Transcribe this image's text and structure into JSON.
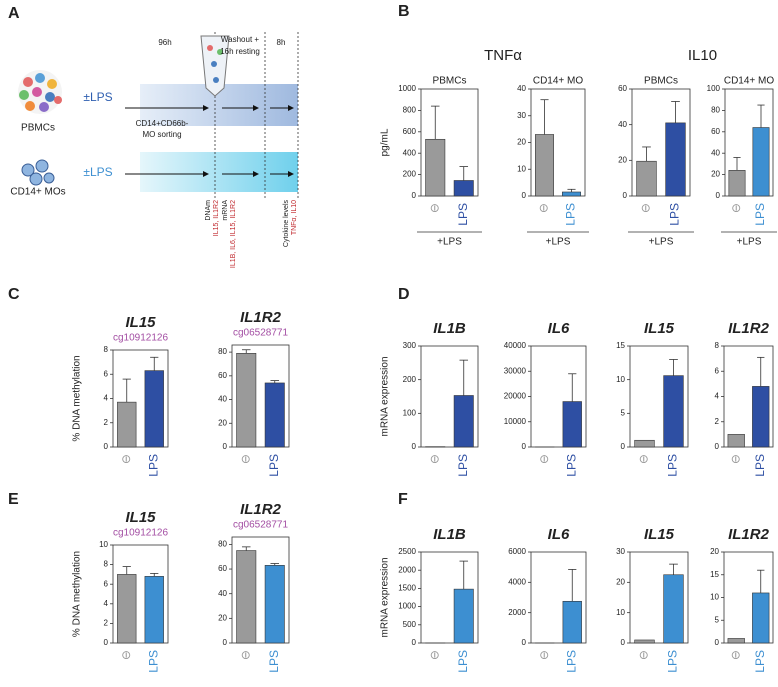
{
  "panel_labels": [
    "A",
    "B",
    "C",
    "D",
    "E",
    "F"
  ],
  "diagram": {
    "time_labels": [
      "96h",
      "Washout +",
      "16h resting",
      "8h"
    ],
    "rows": [
      {
        "treatment": "±LPS",
        "cells": "PBMCs",
        "step": [
          "CD14+CD66b-",
          "MO sorting"
        ]
      },
      {
        "treatment": "±LPS",
        "cells": "CD14+ MOs"
      }
    ],
    "readouts": [
      {
        "assay": "DNAm",
        "targets": "IL15, IL1R2"
      },
      {
        "assay": "mRNA",
        "targets": "IL1B, IL6, IL15, IL1R2"
      },
      {
        "assay": "Cytokine levels",
        "targets": "TNFα, IL10"
      }
    ]
  },
  "group_titles": [
    "TNFα",
    "IL10"
  ],
  "chart_data": [
    {
      "type": "bar",
      "title": "PBMCs",
      "ylabel": "pg/mL",
      "annotation": "+LPS",
      "categories": [
        "⊖",
        "LPS"
      ],
      "values": [
        530,
        145
      ],
      "errors": [
        310,
        130
      ],
      "colors": [
        "#9a9a9a",
        "#2e4fa3"
      ],
      "ylim": [
        0,
        1000
      ],
      "yticks": [
        0,
        200,
        400,
        600,
        800,
        1000
      ]
    },
    {
      "type": "bar",
      "title": "CD14+ MO",
      "annotation": "+LPS",
      "categories": [
        "⊖",
        "LPS"
      ],
      "values": [
        23,
        1.5
      ],
      "errors": [
        13,
        1
      ],
      "colors": [
        "#9a9a9a",
        "#3d8fd1"
      ],
      "ylim": [
        0,
        40
      ],
      "yticks": [
        0,
        10,
        20,
        30,
        40
      ]
    },
    {
      "type": "bar",
      "title": "PBMCs",
      "annotation": "+LPS",
      "categories": [
        "⊖",
        "LPS"
      ],
      "values": [
        19.5,
        41
      ],
      "errors": [
        8,
        12
      ],
      "colors": [
        "#9a9a9a",
        "#2e4fa3"
      ],
      "ylim": [
        0,
        60
      ],
      "yticks": [
        0,
        20,
        40,
        60
      ]
    },
    {
      "type": "bar",
      "title": "CD14+ MO",
      "annotation": "+LPS",
      "categories": [
        "⊖",
        "LPS"
      ],
      "values": [
        24,
        64
      ],
      "errors": [
        12,
        21
      ],
      "colors": [
        "#9a9a9a",
        "#3d8fd1"
      ],
      "ylim": [
        0,
        100
      ],
      "yticks": [
        0,
        20,
        40,
        60,
        80,
        100
      ]
    },
    {
      "type": "bar",
      "title": "IL15",
      "title_italic": true,
      "subtitle": "cg10912126",
      "ylabel": "% DNA methylation",
      "categories": [
        "⊖",
        "LPS"
      ],
      "values": [
        3.7,
        6.3
      ],
      "errors": [
        1.9,
        1.1
      ],
      "colors": [
        "#9a9a9a",
        "#2e4fa3"
      ],
      "ylim": [
        0,
        8
      ],
      "yticks": [
        0,
        2,
        4,
        6,
        8
      ]
    },
    {
      "type": "bar",
      "title": "IL1R2",
      "title_italic": true,
      "subtitle": "cg06528771",
      "categories": [
        "⊖",
        "LPS"
      ],
      "values": [
        79,
        54
      ],
      "errors": [
        3,
        2
      ],
      "colors": [
        "#9a9a9a",
        "#2e4fa3"
      ],
      "ylim": [
        0,
        86
      ],
      "yticks": [
        0,
        20,
        40,
        60,
        80
      ]
    },
    {
      "type": "bar",
      "title": "IL1B",
      "title_italic": true,
      "ylabel": "mRNA expression",
      "categories": [
        "⊖",
        "LPS"
      ],
      "values": [
        1,
        153
      ],
      "errors": [
        null,
        105
      ],
      "colors": [
        "#9a9a9a",
        "#2e4fa3"
      ],
      "ylim": [
        0,
        300
      ],
      "yticks": [
        0,
        100,
        200,
        300
      ]
    },
    {
      "type": "bar",
      "title": "IL6",
      "title_italic": true,
      "categories": [
        "⊖",
        "LPS"
      ],
      "values": [
        1,
        18000
      ],
      "errors": [
        null,
        11000
      ],
      "colors": [
        "#9a9a9a",
        "#2e4fa3"
      ],
      "ylim": [
        0,
        40000
      ],
      "yticks": [
        0,
        10000,
        20000,
        30000,
        40000
      ]
    },
    {
      "type": "bar",
      "title": "IL15",
      "title_italic": true,
      "categories": [
        "⊖",
        "LPS"
      ],
      "values": [
        1,
        10.6
      ],
      "errors": [
        null,
        2.4
      ],
      "colors": [
        "#9a9a9a",
        "#2e4fa3"
      ],
      "ylim": [
        0,
        15
      ],
      "yticks": [
        0,
        5,
        10,
        15
      ]
    },
    {
      "type": "bar",
      "title": "IL1R2",
      "title_italic": true,
      "categories": [
        "⊖",
        "LPS"
      ],
      "values": [
        1,
        4.8
      ],
      "errors": [
        null,
        2.3
      ],
      "colors": [
        "#9a9a9a",
        "#2e4fa3"
      ],
      "ylim": [
        0,
        8
      ],
      "yticks": [
        0,
        2,
        4,
        6,
        8
      ]
    },
    {
      "type": "bar",
      "title": "IL15",
      "title_italic": true,
      "subtitle": "cg10912126",
      "ylabel": "% DNA methylation",
      "categories": [
        "⊖",
        "LPS"
      ],
      "values": [
        7.0,
        6.8
      ],
      "errors": [
        0.8,
        0.3
      ],
      "colors": [
        "#9a9a9a",
        "#3d8fd1"
      ],
      "ylim": [
        0,
        10
      ],
      "yticks": [
        0,
        2,
        4,
        6,
        8,
        10
      ]
    },
    {
      "type": "bar",
      "title": "IL1R2",
      "title_italic": true,
      "subtitle": "cg06528771",
      "categories": [
        "⊖",
        "LPS"
      ],
      "values": [
        75,
        63
      ],
      "errors": [
        3,
        1.5
      ],
      "colors": [
        "#9a9a9a",
        "#3d8fd1"
      ],
      "ylim": [
        0,
        86
      ],
      "yticks": [
        0,
        20,
        40,
        60,
        80
      ]
    },
    {
      "type": "bar",
      "title": "IL1B",
      "title_italic": true,
      "ylabel": "mRNA expression",
      "categories": [
        "⊖",
        "LPS"
      ],
      "values": [
        1,
        1480
      ],
      "errors": [
        null,
        770
      ],
      "colors": [
        "#9a9a9a",
        "#3d8fd1"
      ],
      "ylim": [
        0,
        2500
      ],
      "yticks": [
        0,
        500,
        1000,
        1500,
        2000,
        2500
      ]
    },
    {
      "type": "bar",
      "title": "IL6",
      "title_italic": true,
      "categories": [
        "⊖",
        "LPS"
      ],
      "values": [
        1,
        2750
      ],
      "errors": [
        null,
        2100
      ],
      "colors": [
        "#9a9a9a",
        "#3d8fd1"
      ],
      "ylim": [
        0,
        6000
      ],
      "yticks": [
        0,
        2000,
        4000,
        6000
      ]
    },
    {
      "type": "bar",
      "title": "IL15",
      "title_italic": true,
      "categories": [
        "⊖",
        "LPS"
      ],
      "values": [
        1,
        22.5
      ],
      "errors": [
        null,
        3.5
      ],
      "colors": [
        "#9a9a9a",
        "#3d8fd1"
      ],
      "ylim": [
        0,
        30
      ],
      "yticks": [
        0,
        10,
        20,
        30
      ]
    },
    {
      "type": "bar",
      "title": "IL1R2",
      "title_italic": true,
      "categories": [
        "⊖",
        "LPS"
      ],
      "values": [
        1,
        11
      ],
      "errors": [
        null,
        5
      ],
      "colors": [
        "#9a9a9a",
        "#3d8fd1"
      ],
      "ylim": [
        0,
        20
      ],
      "yticks": [
        0,
        5,
        10,
        15,
        20
      ]
    }
  ]
}
